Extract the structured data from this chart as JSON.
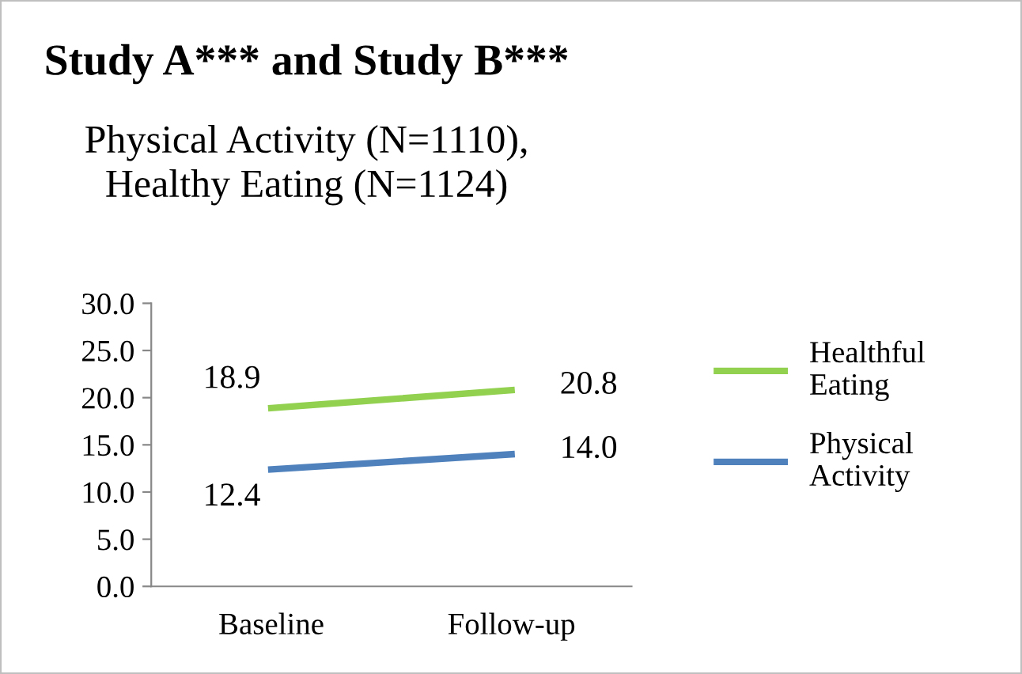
{
  "chart_data": {
    "type": "line",
    "title": "Study A*** and Study B***",
    "subtitle": "Physical Activity (N=1110),\nHealthy Eating (N=1124)",
    "categories": [
      "Baseline",
      "Follow-up"
    ],
    "series": [
      {
        "name": "Healthful\nEating",
        "color": "#92d050",
        "values": [
          18.9,
          20.8
        ],
        "value_labels": [
          "18.9",
          "20.8"
        ]
      },
      {
        "name": "Physical\nActivity",
        "color": "#4f81bd",
        "values": [
          12.4,
          14.0
        ],
        "value_labels": [
          "12.4",
          "14.0"
        ]
      }
    ],
    "ylim": [
      0,
      30
    ],
    "yticks": [
      {
        "value": 0,
        "label": "0.0"
      },
      {
        "value": 5,
        "label": "5.0"
      },
      {
        "value": 10,
        "label": "10.0"
      },
      {
        "value": 15,
        "label": "15.0"
      },
      {
        "value": 20,
        "label": "20.0"
      },
      {
        "value": 25,
        "label": "25.0"
      },
      {
        "value": 30,
        "label": "30.0"
      }
    ],
    "grid": false,
    "legend": "right",
    "marker": "none",
    "line_style": "solid"
  }
}
